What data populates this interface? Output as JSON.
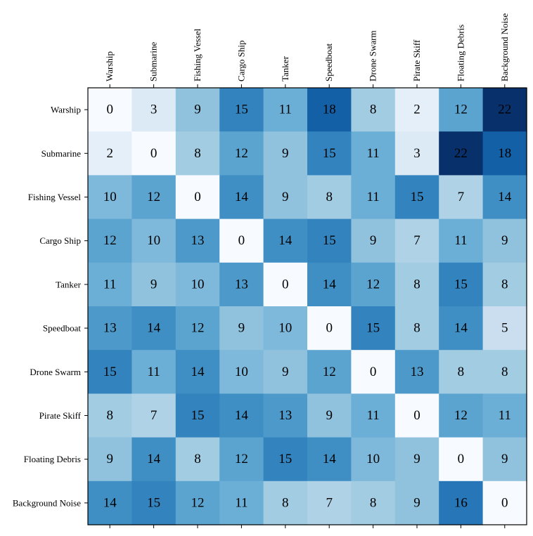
{
  "chart_data": {
    "type": "heatmap",
    "title": "",
    "xlabel": "",
    "ylabel": "",
    "colormap": "Blues",
    "color_range": [
      0,
      22
    ],
    "x_tick_position": "top",
    "categories_x": [
      "Warship",
      "Submarine",
      "Fishing Vessel",
      "Cargo Ship",
      "Tanker",
      "Speedboat",
      "Drone Swarm",
      "Pirate Skiff",
      "Floating Debris",
      "Background Noise"
    ],
    "categories_y": [
      "Warship",
      "Submarine",
      "Fishing Vessel",
      "Cargo Ship",
      "Tanker",
      "Speedboat",
      "Drone Swarm",
      "Pirate Skiff",
      "Floating Debris",
      "Background Noise"
    ],
    "values": [
      [
        0,
        3,
        9,
        15,
        11,
        18,
        8,
        2,
        12,
        22
      ],
      [
        2,
        0,
        8,
        12,
        9,
        15,
        11,
        3,
        22,
        18
      ],
      [
        10,
        12,
        0,
        14,
        9,
        8,
        11,
        15,
        7,
        14
      ],
      [
        12,
        10,
        13,
        0,
        14,
        15,
        9,
        7,
        11,
        9
      ],
      [
        11,
        9,
        10,
        13,
        0,
        14,
        12,
        8,
        15,
        8
      ],
      [
        13,
        14,
        12,
        9,
        10,
        0,
        15,
        8,
        14,
        5
      ],
      [
        15,
        11,
        14,
        10,
        9,
        12,
        0,
        13,
        8,
        8
      ],
      [
        8,
        7,
        15,
        14,
        13,
        9,
        11,
        0,
        12,
        11
      ],
      [
        9,
        14,
        8,
        12,
        15,
        14,
        10,
        9,
        0,
        9
      ],
      [
        14,
        15,
        12,
        11,
        8,
        7,
        8,
        9,
        16,
        0
      ]
    ]
  }
}
